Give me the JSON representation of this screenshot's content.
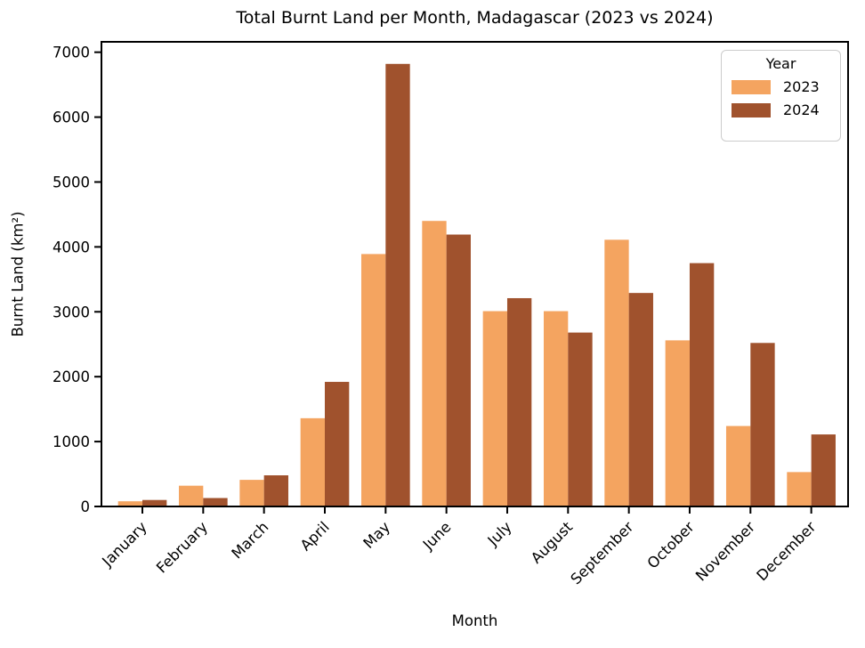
{
  "chart_data": {
    "type": "bar",
    "title": "Total Burnt Land per Month, Madagascar (2023 vs 2024)",
    "xlabel": "Month",
    "ylabel": "Burnt Land (km²)",
    "categories": [
      "January",
      "February",
      "March",
      "April",
      "May",
      "June",
      "July",
      "August",
      "September",
      "October",
      "November",
      "December"
    ],
    "series": [
      {
        "name": "2023",
        "color": "#F4A460",
        "values": [
          80,
          320,
          410,
          1360,
          3890,
          4400,
          3010,
          3010,
          4110,
          2560,
          1240,
          530
        ]
      },
      {
        "name": "2024",
        "color": "#A0522D",
        "values": [
          100,
          130,
          480,
          1920,
          6820,
          4190,
          3210,
          2680,
          3290,
          3750,
          2520,
          1110
        ]
      }
    ],
    "ylim": [
      0,
      7160
    ],
    "yticks": [
      0,
      1000,
      2000,
      3000,
      4000,
      5000,
      6000,
      7000
    ],
    "legend": {
      "title": "Year",
      "position": "upper right"
    },
    "grid": false,
    "x_tick_rotation": 45,
    "axis_color": "#000000",
    "text_color": "#000000"
  }
}
